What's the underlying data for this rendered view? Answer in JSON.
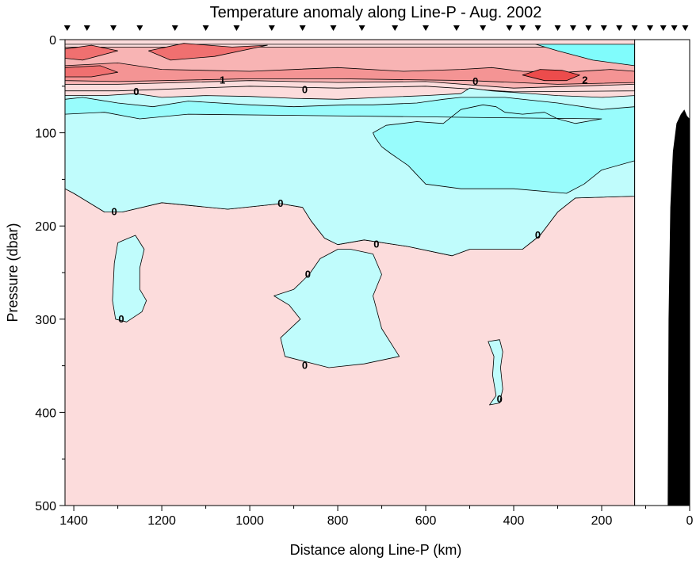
{
  "chart_data": {
    "type": "contour",
    "title": "Temperature anomaly along Line-P - Aug. 2002",
    "xlabel": "Distance along Line-P (km)",
    "ylabel": "Pressure (dbar)",
    "xlim": [
      1420,
      0
    ],
    "ylim": [
      500,
      0
    ],
    "x_ticks": [
      1400,
      1200,
      1000,
      800,
      600,
      400,
      200,
      0
    ],
    "y_ticks": [
      0,
      100,
      200,
      300,
      400,
      500
    ],
    "station_km": [
      1415,
      1370,
      1310,
      1250,
      1170,
      1100,
      1030,
      950,
      880,
      810,
      745,
      670,
      600,
      530,
      470,
      410,
      380,
      345,
      300,
      265,
      230,
      195,
      160,
      125,
      90,
      60,
      35,
      10
    ],
    "contour_levels": [
      0,
      0.5,
      1,
      1.5,
      2,
      2.5
    ],
    "contour_labels": [
      {
        "text": "0",
        "x": 1258,
        "y": 56
      },
      {
        "text": "1",
        "x": 1062,
        "y": 44
      },
      {
        "text": "0",
        "x": 875,
        "y": 54
      },
      {
        "text": "0",
        "x": 487,
        "y": 45
      },
      {
        "text": "2",
        "x": 238,
        "y": 44
      },
      {
        "text": "0",
        "x": 1308,
        "y": 185
      },
      {
        "text": "0",
        "x": 930,
        "y": 176
      },
      {
        "text": "0",
        "x": 1292,
        "y": 300
      },
      {
        "text": "0",
        "x": 868,
        "y": 252
      },
      {
        "text": "0",
        "x": 712,
        "y": 220
      },
      {
        "text": "0",
        "x": 875,
        "y": 350
      },
      {
        "text": "0",
        "x": 345,
        "y": 210
      },
      {
        "text": "0",
        "x": 432,
        "y": 386
      }
    ],
    "anomaly_regions": [
      {
        "sign": "positive",
        "level": "0 to 0.5",
        "color": "#fcdcdc",
        "outline": [
          [
            1420,
            160
          ],
          [
            1400,
            165
          ],
          [
            1330,
            185
          ],
          [
            1290,
            185
          ],
          [
            1200,
            175
          ],
          [
            1050,
            182
          ],
          [
            930,
            176
          ],
          [
            880,
            180
          ],
          [
            860,
            195
          ],
          [
            830,
            213
          ],
          [
            800,
            220
          ],
          [
            740,
            215
          ],
          [
            640,
            222
          ],
          [
            540,
            232
          ],
          [
            500,
            225
          ],
          [
            380,
            225
          ],
          [
            340,
            210
          ],
          [
            300,
            185
          ],
          [
            260,
            170
          ],
          [
            125,
            168
          ],
          [
            125,
            500
          ],
          [
            1420,
            500
          ]
        ]
      },
      {
        "sign": "positive",
        "level": "0 to 0.5",
        "color": "#fcdcdc",
        "outline": [
          [
            1420,
            5
          ],
          [
            125,
            5
          ],
          [
            125,
            55
          ],
          [
            400,
            56
          ],
          [
            600,
            50
          ],
          [
            800,
            52
          ],
          [
            1000,
            50
          ],
          [
            1300,
            55
          ],
          [
            1420,
            55
          ]
        ]
      },
      {
        "sign": "positive",
        "level": "0.5 to 1",
        "color": "#f8b4b4",
        "outline": [
          [
            1420,
            8
          ],
          [
            125,
            8
          ],
          [
            125,
            48
          ],
          [
            400,
            52
          ],
          [
            600,
            45
          ],
          [
            800,
            46
          ],
          [
            1000,
            44
          ],
          [
            1300,
            48
          ],
          [
            1420,
            48
          ]
        ]
      },
      {
        "sign": "positive",
        "level": "1 to 1.5",
        "color": "#f49494",
        "outline": [
          [
            1420,
            28
          ],
          [
            1300,
            25
          ],
          [
            1200,
            32
          ],
          [
            1000,
            34
          ],
          [
            800,
            30
          ],
          [
            650,
            34
          ],
          [
            520,
            32
          ],
          [
            450,
            30
          ],
          [
            380,
            34
          ],
          [
            280,
            35
          ],
          [
            180,
            32
          ],
          [
            125,
            34
          ],
          [
            125,
            46
          ],
          [
            300,
            48
          ],
          [
            500,
            44
          ],
          [
            800,
            42
          ],
          [
            1000,
            42
          ],
          [
            1300,
            45
          ],
          [
            1420,
            44
          ]
        ]
      },
      {
        "sign": "positive",
        "level": "1.5 to 2",
        "color": "#f07070",
        "outline": [
          [
            1420,
            10
          ],
          [
            1360,
            6
          ],
          [
            1300,
            12
          ],
          [
            1380,
            22
          ],
          [
            1420,
            20
          ]
        ]
      },
      {
        "sign": "positive",
        "level": "1.5 to 2",
        "color": "#f07070",
        "outline": [
          [
            1230,
            12
          ],
          [
            1150,
            4
          ],
          [
            1040,
            8
          ],
          [
            960,
            6
          ],
          [
            1080,
            18
          ],
          [
            1180,
            22
          ]
        ]
      },
      {
        "sign": "positive",
        "level": "1.5 to 2",
        "color": "#f07070",
        "outline": [
          [
            1420,
            30
          ],
          [
            1340,
            28
          ],
          [
            1300,
            35
          ],
          [
            1360,
            40
          ],
          [
            1420,
            40
          ]
        ]
      },
      {
        "sign": "positive",
        "level": "2 to 2.5",
        "color": "#ec4c4c",
        "outline": [
          [
            380,
            38
          ],
          [
            340,
            32
          ],
          [
            290,
            33
          ],
          [
            250,
            38
          ],
          [
            280,
            44
          ],
          [
            330,
            44
          ]
        ]
      },
      {
        "sign": "negative",
        "level": "-0.5 to 0",
        "color": "#c0fcfc",
        "outline": [
          [
            1420,
            60
          ],
          [
            1330,
            60
          ],
          [
            1260,
            58
          ],
          [
            1200,
            62
          ],
          [
            1100,
            60
          ],
          [
            1000,
            61
          ],
          [
            900,
            63
          ],
          [
            800,
            64
          ],
          [
            700,
            62
          ],
          [
            600,
            60
          ],
          [
            520,
            58
          ],
          [
            500,
            52
          ],
          [
            450,
            55
          ],
          [
            300,
            60
          ],
          [
            200,
            62
          ],
          [
            125,
            60
          ],
          [
            125,
            168
          ],
          [
            260,
            170
          ],
          [
            300,
            185
          ],
          [
            340,
            210
          ],
          [
            380,
            225
          ],
          [
            500,
            225
          ],
          [
            540,
            232
          ],
          [
            640,
            222
          ],
          [
            740,
            215
          ],
          [
            800,
            220
          ],
          [
            830,
            213
          ],
          [
            860,
            195
          ],
          [
            880,
            180
          ],
          [
            930,
            176
          ],
          [
            1050,
            182
          ],
          [
            1200,
            175
          ],
          [
            1290,
            185
          ],
          [
            1330,
            185
          ],
          [
            1400,
            165
          ],
          [
            1420,
            160
          ]
        ]
      },
      {
        "sign": "negative",
        "level": "-0.5 to 0",
        "color": "#c0fcfc",
        "outline": [
          [
            1285,
            215
          ],
          [
            1260,
            210
          ],
          [
            1240,
            225
          ],
          [
            1250,
            245
          ],
          [
            1250,
            268
          ],
          [
            1235,
            280
          ],
          [
            1245,
            292
          ],
          [
            1280,
            303
          ],
          [
            1305,
            300
          ],
          [
            1312,
            280
          ],
          [
            1308,
            240
          ],
          [
            1300,
            218
          ]
        ]
      },
      {
        "sign": "negative",
        "level": "-0.5 to 0",
        "color": "#c0fcfc",
        "outline": [
          [
            770,
            225
          ],
          [
            720,
            230
          ],
          [
            700,
            252
          ],
          [
            720,
            275
          ],
          [
            700,
            310
          ],
          [
            660,
            340
          ],
          [
            740,
            348
          ],
          [
            820,
            352
          ],
          [
            920,
            340
          ],
          [
            930,
            320
          ],
          [
            885,
            300
          ],
          [
            910,
            285
          ],
          [
            945,
            275
          ],
          [
            900,
            268
          ],
          [
            865,
            252
          ],
          [
            840,
            235
          ],
          [
            800,
            225
          ]
        ]
      },
      {
        "sign": "negative",
        "level": "-0.5 to 0",
        "color": "#c0fcfc",
        "outline": [
          [
            458,
            324
          ],
          [
            445,
            340
          ],
          [
            448,
            360
          ],
          [
            440,
            382
          ],
          [
            455,
            392
          ],
          [
            432,
            390
          ],
          [
            425,
            375
          ],
          [
            430,
            352
          ],
          [
            425,
            335
          ],
          [
            432,
            322
          ]
        ]
      },
      {
        "sign": "negative",
        "level": "-1 to -0.5",
        "color": "#98fcfc",
        "outline": [
          [
            1420,
            64
          ],
          [
            1380,
            62
          ],
          [
            1300,
            68
          ],
          [
            1220,
            72
          ],
          [
            1140,
            66
          ],
          [
            1000,
            70
          ],
          [
            900,
            72
          ],
          [
            780,
            70
          ],
          [
            720,
            70
          ],
          [
            620,
            68
          ],
          [
            560,
            64
          ],
          [
            520,
            62
          ],
          [
            490,
            62
          ],
          [
            420,
            62
          ],
          [
            300,
            68
          ],
          [
            200,
            75
          ],
          [
            125,
            72
          ],
          [
            125,
            130
          ],
          [
            200,
            140
          ],
          [
            240,
            155
          ],
          [
            280,
            165
          ],
          [
            400,
            160
          ],
          [
            520,
            160
          ],
          [
            600,
            155
          ],
          [
            640,
            135
          ],
          [
            680,
            122
          ],
          [
            700,
            115
          ],
          [
            715,
            105
          ],
          [
            720,
            100
          ],
          [
            690,
            92
          ],
          [
            620,
            88
          ],
          [
            560,
            90
          ],
          [
            520,
            75
          ],
          [
            470,
            70
          ],
          [
            440,
            72
          ],
          [
            420,
            78
          ],
          [
            380,
            80
          ],
          [
            330,
            78
          ],
          [
            300,
            85
          ],
          [
            260,
            90
          ],
          [
            200,
            85
          ],
          [
            1140,
            80
          ],
          [
            1250,
            85
          ],
          [
            1330,
            78
          ],
          [
            1420,
            80
          ]
        ]
      },
      {
        "sign": "negative",
        "level": "-1.5 to -1",
        "color": "#80fcfc",
        "outline": [
          [
            350,
            5
          ],
          [
            300,
            12
          ],
          [
            220,
            22
          ],
          [
            125,
            28
          ],
          [
            125,
            5
          ]
        ]
      }
    ],
    "bathymetry": {
      "color": "#000000",
      "fill_between_km": [
        50,
        0
      ],
      "shallowest_dbar": 75,
      "deepest_dbar": 500
    },
    "grid": false,
    "legend": "none"
  }
}
